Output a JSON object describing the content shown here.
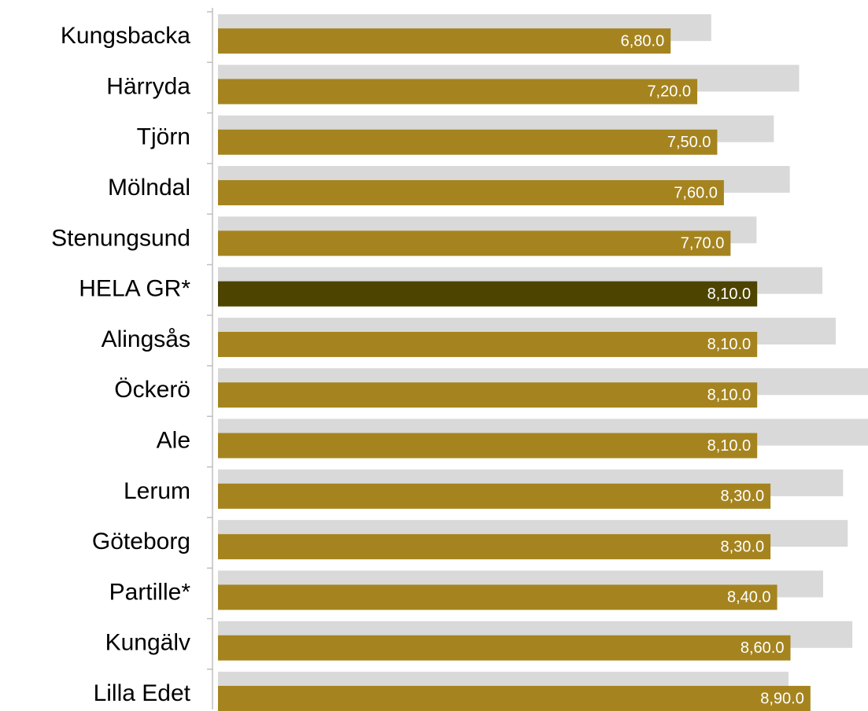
{
  "chart_data": {
    "type": "barh",
    "categories": [
      "Kungsbacka",
      "Härryda",
      "Tjörn",
      "Mölndal",
      "Stenungsund",
      "HELA GR*",
      "Alingsås",
      "Öckerö",
      "Ale",
      "Lerum",
      "Göteborg",
      "Partille*",
      "Kungälv",
      "Lilla Edet"
    ],
    "series": [
      {
        "color": "#d9d9d9",
        "values": [
          7.41,
          8.73,
          8.35,
          8.59,
          8.09,
          9.08,
          9.28,
          9.8,
          9.8,
          9.39,
          9.46,
          9.09,
          9.53,
          8.57
        ]
      },
      {
        "color": "#a5841f",
        "colors": [
          "#a5841f",
          "#a5841f",
          "#a5841f",
          "#a5841f",
          "#a5841f",
          "#4d4400",
          "#a5841f",
          "#a5841f",
          "#a5841f",
          "#a5841f",
          "#a5841f",
          "#a5841f",
          "#a5841f",
          "#a5841f"
        ],
        "values": [
          6.8,
          7.2,
          7.5,
          7.6,
          7.7,
          8.1,
          8.1,
          8.1,
          8.1,
          8.3,
          8.3,
          8.4,
          8.6,
          8.9
        ],
        "value_labels": [
          "6,80.0",
          "7,20.0",
          "7,50.0",
          "7,60.0",
          "7,70.0",
          "8,10.0",
          "8,10.0",
          "8,10.0",
          "8,10.0",
          "8,30.0",
          "8,30.0",
          "8,40.0",
          "8,60.0",
          "8,90.0"
        ]
      }
    ],
    "xlim": [
      0,
      9.8
    ]
  }
}
